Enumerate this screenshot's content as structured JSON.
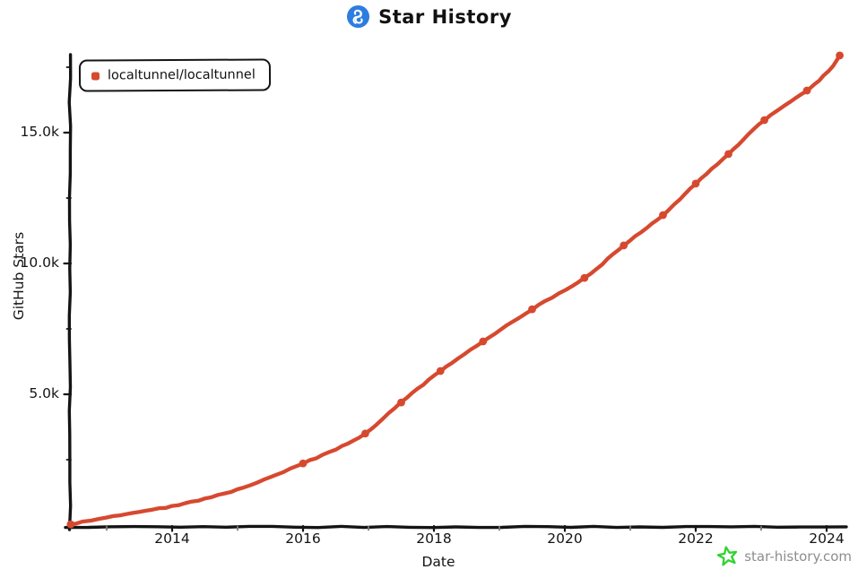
{
  "header": {
    "title": "Star History",
    "logo_icon": "star-history-logo",
    "logo_color": "#2d7de0"
  },
  "legend": {
    "items": [
      {
        "label": "localtunnel/localtunnel",
        "color": "#d6492f"
      }
    ]
  },
  "watermark": {
    "text": "star-history.com",
    "star_color": "#2fd32f",
    "text_color": "#8e8e8e"
  },
  "chart_data": {
    "type": "line",
    "title": "Star History",
    "xlabel": "Date",
    "ylabel": "GitHub Stars",
    "grid": false,
    "legend_position": "top-left",
    "axis_color": "#141414",
    "xlim": [
      2012.4,
      2024.35
    ],
    "ylim": [
      0,
      18200
    ],
    "x_ticks": [
      {
        "value": 2014,
        "label": "2014"
      },
      {
        "value": 2016,
        "label": "2016"
      },
      {
        "value": 2018,
        "label": "2018"
      },
      {
        "value": 2020,
        "label": "2020"
      },
      {
        "value": 2022,
        "label": "2022"
      },
      {
        "value": 2024,
        "label": "2024"
      }
    ],
    "x_minor_ticks": [
      2013,
      2015,
      2017,
      2019,
      2021,
      2023
    ],
    "y_ticks": [
      {
        "value": 5000,
        "label": "5.0k"
      },
      {
        "value": 10000,
        "label": "10.0k"
      },
      {
        "value": 15000,
        "label": "15.0k"
      }
    ],
    "y_minor_ticks": [
      2500,
      7500,
      12500,
      17500
    ],
    "series": [
      {
        "name": "localtunnel/localtunnel",
        "color": "#d6492f",
        "points": [
          [
            2012.45,
            30
          ],
          [
            2013.0,
            300
          ],
          [
            2013.5,
            520
          ],
          [
            2014.0,
            720
          ],
          [
            2014.5,
            1010
          ],
          [
            2015.0,
            1360
          ],
          [
            2015.5,
            1820
          ],
          [
            2016.0,
            2360
          ],
          [
            2016.5,
            2900
          ],
          [
            2016.95,
            3500
          ],
          [
            2017.5,
            4690
          ],
          [
            2018.1,
            5890
          ],
          [
            2018.75,
            7020
          ],
          [
            2019.5,
            8250
          ],
          [
            2020.3,
            9450
          ],
          [
            2020.9,
            10690
          ],
          [
            2021.5,
            11850
          ],
          [
            2022.0,
            13050
          ],
          [
            2022.5,
            14180
          ],
          [
            2023.05,
            15480
          ],
          [
            2023.7,
            16610
          ],
          [
            2023.95,
            17150
          ],
          [
            2024.1,
            17550
          ],
          [
            2024.2,
            17950
          ]
        ],
        "markers": [
          [
            2012.45,
            30
          ],
          [
            2016.0,
            2360
          ],
          [
            2016.95,
            3500
          ],
          [
            2017.5,
            4690
          ],
          [
            2018.1,
            5890
          ],
          [
            2018.75,
            7020
          ],
          [
            2019.5,
            8250
          ],
          [
            2020.3,
            9450
          ],
          [
            2020.9,
            10690
          ],
          [
            2021.5,
            11850
          ],
          [
            2022.0,
            13050
          ],
          [
            2022.5,
            14180
          ],
          [
            2023.05,
            15480
          ],
          [
            2023.7,
            16610
          ],
          [
            2024.2,
            17950
          ]
        ]
      }
    ]
  }
}
